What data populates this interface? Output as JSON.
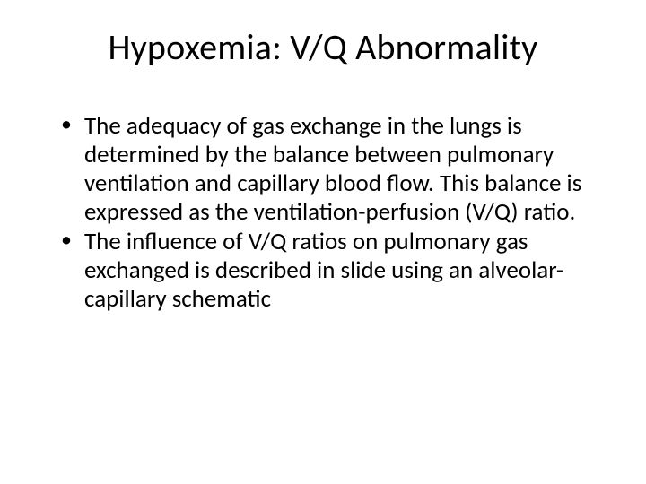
{
  "slide": {
    "title": "Hypoxemia: V/Q Abnormality",
    "bullets": [
      "The adequacy of gas exchange in the lungs is determined by the balance between pulmonary ventilation and capillary blood flow. This balance is expressed as the ventilation-perfusion (V/Q) ratio.",
      "The influence of V/Q ratios on pulmonary gas exchanged is described in slide using an alveolar-capillary schematic"
    ]
  },
  "style": {
    "background_color": "#ffffff",
    "text_color": "#000000",
    "title_fontsize": 40,
    "body_fontsize": 27,
    "font_family": "Calibri"
  }
}
